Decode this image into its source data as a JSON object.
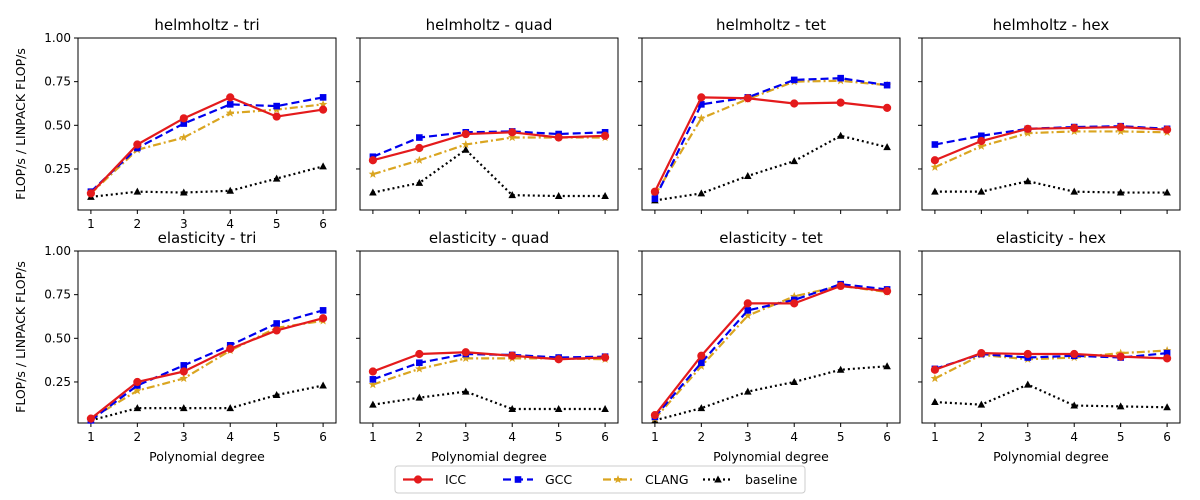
{
  "figure": {
    "xlabel": "Polynomial degree",
    "ylabel": "FLOP/s / LINPACK FLOP/s",
    "legend": {
      "placement": "bottom-center",
      "entries": [
        "ICC",
        "GCC",
        "CLANG",
        "baseline"
      ]
    }
  },
  "series_styles": [
    {
      "name": "ICC",
      "color": "#e41a1c",
      "dash": "solid",
      "marker": "circle"
    },
    {
      "name": "GCC",
      "color": "#0000ee",
      "dash": "dashed",
      "marker": "square"
    },
    {
      "name": "CLANG",
      "color": "#daa520",
      "dash": "dashdot",
      "marker": "star"
    },
    {
      "name": "baseline",
      "color": "#000000",
      "dash": "dotted",
      "marker": "triangle"
    }
  ],
  "chart_data": [
    {
      "type": "line",
      "title": "helmholtz - tri",
      "x": [
        1,
        2,
        3,
        4,
        5,
        6
      ],
      "ylim": [
        0,
        1
      ],
      "yticks": [
        "0.25",
        "0.50",
        "0.75",
        "1.00"
      ],
      "xticks": [
        "1",
        "2",
        "3",
        "4",
        "5",
        "6"
      ],
      "series": [
        {
          "name": "ICC",
          "values": [
            0.11,
            0.39,
            0.54,
            0.66,
            0.55,
            0.59
          ]
        },
        {
          "name": "GCC",
          "values": [
            0.12,
            0.37,
            0.51,
            0.62,
            0.61,
            0.66
          ]
        },
        {
          "name": "CLANG",
          "values": [
            0.11,
            0.36,
            0.43,
            0.57,
            0.59,
            0.62
          ]
        },
        {
          "name": "baseline",
          "values": [
            0.09,
            0.12,
            0.115,
            0.125,
            0.195,
            0.265
          ]
        }
      ]
    },
    {
      "type": "line",
      "title": "helmholtz - quad",
      "x": [
        1,
        2,
        3,
        4,
        5,
        6
      ],
      "ylim": [
        0,
        1
      ],
      "yticks": [],
      "xticks": [],
      "series": [
        {
          "name": "ICC",
          "values": [
            0.3,
            0.37,
            0.45,
            0.46,
            0.43,
            0.44
          ]
        },
        {
          "name": "GCC",
          "values": [
            0.32,
            0.43,
            0.46,
            0.465,
            0.45,
            0.46
          ]
        },
        {
          "name": "CLANG",
          "values": [
            0.22,
            0.3,
            0.39,
            0.43,
            0.43,
            0.43
          ]
        },
        {
          "name": "baseline",
          "values": [
            0.115,
            0.17,
            0.36,
            0.1,
            0.095,
            0.095
          ]
        }
      ]
    },
    {
      "type": "line",
      "title": "helmholtz - tet",
      "x": [
        1,
        2,
        3,
        4,
        5,
        6
      ],
      "ylim": [
        0,
        1
      ],
      "yticks": [],
      "xticks": [],
      "series": [
        {
          "name": "ICC",
          "values": [
            0.12,
            0.66,
            0.655,
            0.625,
            0.63,
            0.6
          ]
        },
        {
          "name": "GCC",
          "values": [
            0.08,
            0.62,
            0.66,
            0.76,
            0.77,
            0.73
          ]
        },
        {
          "name": "CLANG",
          "values": [
            0.1,
            0.54,
            0.65,
            0.75,
            0.755,
            0.73
          ]
        },
        {
          "name": "baseline",
          "values": [
            0.07,
            0.11,
            0.21,
            0.295,
            0.44,
            0.375
          ]
        }
      ]
    },
    {
      "type": "line",
      "title": "helmholtz - hex",
      "x": [
        1,
        2,
        3,
        4,
        5,
        6
      ],
      "ylim": [
        0,
        1
      ],
      "yticks": [],
      "xticks": [],
      "series": [
        {
          "name": "ICC",
          "values": [
            0.3,
            0.41,
            0.48,
            0.485,
            0.49,
            0.475
          ]
        },
        {
          "name": "GCC",
          "values": [
            0.39,
            0.44,
            0.48,
            0.49,
            0.495,
            0.48
          ]
        },
        {
          "name": "CLANG",
          "values": [
            0.26,
            0.38,
            0.455,
            0.465,
            0.465,
            0.46
          ]
        },
        {
          "name": "baseline",
          "values": [
            0.12,
            0.12,
            0.18,
            0.12,
            0.115,
            0.115
          ]
        }
      ]
    },
    {
      "type": "line",
      "title": "elasticity - tri",
      "x": [
        1,
        2,
        3,
        4,
        5,
        6
      ],
      "ylim": [
        0,
        1
      ],
      "yticks": [
        "0.25",
        "0.50",
        "0.75",
        "1.00"
      ],
      "xticks": [
        "1",
        "2",
        "3",
        "4",
        "5",
        "6"
      ],
      "series": [
        {
          "name": "ICC",
          "values": [
            0.04,
            0.25,
            0.31,
            0.44,
            0.545,
            0.615
          ]
        },
        {
          "name": "GCC",
          "values": [
            0.03,
            0.23,
            0.345,
            0.46,
            0.585,
            0.66
          ]
        },
        {
          "name": "CLANG",
          "values": [
            0.04,
            0.2,
            0.27,
            0.43,
            0.56,
            0.6
          ]
        },
        {
          "name": "baseline",
          "values": [
            0.03,
            0.1,
            0.1,
            0.1,
            0.175,
            0.23
          ]
        }
      ]
    },
    {
      "type": "line",
      "title": "elasticity - quad",
      "x": [
        1,
        2,
        3,
        4,
        5,
        6
      ],
      "ylim": [
        0,
        1
      ],
      "yticks": [],
      "xticks": [
        "1",
        "2",
        "3",
        "4",
        "5",
        "6"
      ],
      "series": [
        {
          "name": "ICC",
          "values": [
            0.31,
            0.41,
            0.42,
            0.4,
            0.38,
            0.39
          ]
        },
        {
          "name": "GCC",
          "values": [
            0.265,
            0.36,
            0.41,
            0.405,
            0.39,
            0.395
          ]
        },
        {
          "name": "CLANG",
          "values": [
            0.235,
            0.325,
            0.385,
            0.385,
            0.385,
            0.38
          ]
        },
        {
          "name": "baseline",
          "values": [
            0.12,
            0.16,
            0.195,
            0.095,
            0.095,
            0.095
          ]
        }
      ]
    },
    {
      "type": "line",
      "title": "elasticity - tet",
      "x": [
        1,
        2,
        3,
        4,
        5,
        6
      ],
      "ylim": [
        0,
        1
      ],
      "yticks": [],
      "xticks": [
        "1",
        "2",
        "3",
        "4",
        "5",
        "6"
      ],
      "series": [
        {
          "name": "ICC",
          "values": [
            0.06,
            0.4,
            0.7,
            0.7,
            0.8,
            0.77
          ]
        },
        {
          "name": "GCC",
          "values": [
            0.05,
            0.36,
            0.66,
            0.72,
            0.81,
            0.78
          ]
        },
        {
          "name": "CLANG",
          "values": [
            0.04,
            0.34,
            0.63,
            0.74,
            0.8,
            0.765
          ]
        },
        {
          "name": "baseline",
          "values": [
            0.03,
            0.1,
            0.195,
            0.25,
            0.32,
            0.34
          ]
        }
      ]
    },
    {
      "type": "line",
      "title": "elasticity - hex",
      "x": [
        1,
        2,
        3,
        4,
        5,
        6
      ],
      "ylim": [
        0,
        1
      ],
      "yticks": [],
      "xticks": [
        "1",
        "2",
        "3",
        "4",
        "5",
        "6"
      ],
      "series": [
        {
          "name": "ICC",
          "values": [
            0.32,
            0.415,
            0.41,
            0.41,
            0.395,
            0.385
          ]
        },
        {
          "name": "GCC",
          "values": [
            0.325,
            0.41,
            0.39,
            0.4,
            0.39,
            0.415
          ]
        },
        {
          "name": "CLANG",
          "values": [
            0.27,
            0.405,
            0.38,
            0.39,
            0.415,
            0.43
          ]
        },
        {
          "name": "baseline",
          "values": [
            0.135,
            0.12,
            0.235,
            0.115,
            0.11,
            0.105
          ]
        }
      ]
    }
  ]
}
